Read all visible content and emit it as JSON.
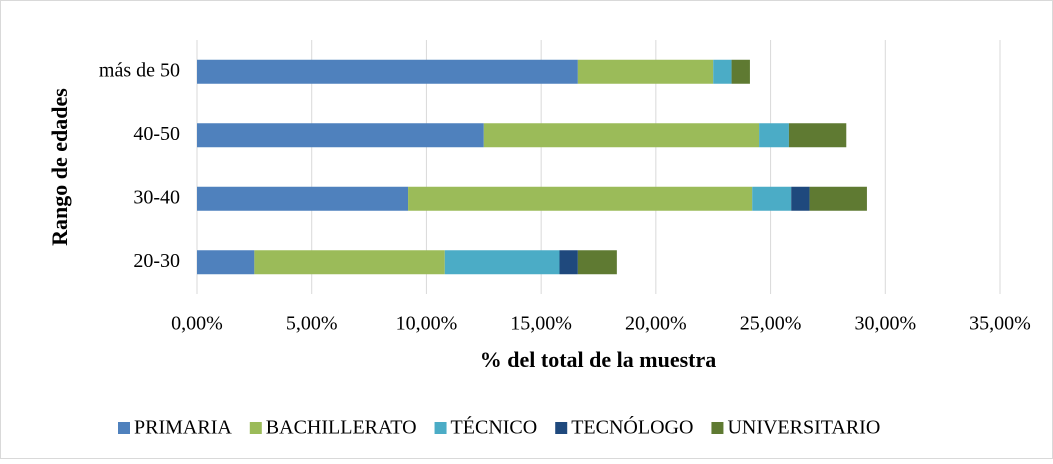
{
  "chart_data": {
    "type": "stacked_bar_horizontal",
    "x_label": "% del total de la muestra",
    "y_label": "Rango de edades",
    "categories": [
      "20-30",
      "30-40",
      "40-50",
      "más de 50"
    ],
    "series": [
      {
        "name": "PRIMARIA",
        "color": "#4f81bd",
        "values": [
          2.5,
          9.2,
          12.5,
          16.6
        ]
      },
      {
        "name": "BACHILLERATO",
        "color": "#9bbb59",
        "values": [
          8.3,
          15.0,
          12.0,
          5.9
        ]
      },
      {
        "name": "TÉCNICO",
        "color": "#4bacc6",
        "values": [
          5.0,
          1.7,
          1.3,
          0.8
        ]
      },
      {
        "name": "TECNÓLOGO",
        "color": "#1f497d",
        "values": [
          0.8,
          0.8,
          0,
          0
        ]
      },
      {
        "name": "UNIVERSITARIO",
        "color": "#5f7a32",
        "values": [
          1.7,
          2.5,
          2.5,
          0.8
        ]
      }
    ],
    "xlim": [
      0,
      35
    ],
    "xticks": [
      {
        "value": 0,
        "label": "0,00%"
      },
      {
        "value": 5,
        "label": "5,00%"
      },
      {
        "value": 10,
        "label": "10,00%"
      },
      {
        "value": 15,
        "label": "15,00%"
      },
      {
        "value": 20,
        "label": "20,00%"
      },
      {
        "value": 25,
        "label": "25,00%"
      },
      {
        "value": 30,
        "label": "30,00%"
      },
      {
        "value": 35,
        "label": "35,00%"
      }
    ],
    "grid": true,
    "legend": "bottom"
  }
}
